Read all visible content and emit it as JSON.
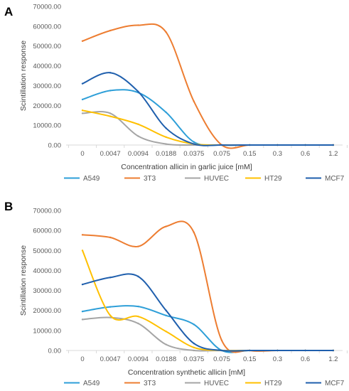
{
  "chart_data": [
    {
      "type": "line",
      "panel_label": "A",
      "xlabel": "Concentration allicin in garlic juice [mM]",
      "ylabel": "Scintillation response",
      "categories": [
        "0",
        "0.0047",
        "0.0094",
        "0.0188",
        "0.0375",
        "0.075",
        "0.15",
        "0.3",
        "0.6",
        "1.2"
      ],
      "yticks": [
        "0.00",
        "10000.00",
        "20000.00",
        "30000.00",
        "40000.00",
        "50000.00",
        "60000.00",
        "70000.00"
      ],
      "ylim": [
        0,
        70000
      ],
      "grid": false,
      "legend_position": "bottom",
      "series": [
        {
          "name": "A549",
          "color": "#2e9fd8",
          "values": [
            23000,
            27500,
            26500,
            16500,
            1500,
            0,
            0,
            0,
            0,
            0
          ]
        },
        {
          "name": "3T3",
          "color": "#ed7d31",
          "values": [
            52500,
            57800,
            60500,
            57000,
            22000,
            0,
            0,
            0,
            0,
            0
          ]
        },
        {
          "name": "HUVEC",
          "color": "#a5a5a5",
          "values": [
            16000,
            16000,
            4500,
            500,
            0,
            0,
            0,
            0,
            0,
            0
          ]
        },
        {
          "name": "HT29",
          "color": "#ffc000",
          "values": [
            17500,
            14500,
            10500,
            4000,
            500,
            0,
            0,
            0,
            0,
            0
          ]
        },
        {
          "name": "MCF7",
          "color": "#1f5fad",
          "values": [
            31000,
            36500,
            27000,
            8500,
            500,
            0,
            0,
            0,
            0,
            0
          ]
        }
      ]
    },
    {
      "type": "line",
      "panel_label": "B",
      "xlabel": "Concentration synthetic allicin [mM]",
      "ylabel": "Scintillation response",
      "categories": [
        "0",
        "0.0047",
        "0.0094",
        "0.0188",
        "0.0375",
        "0.075",
        "0.15",
        "0.3",
        "0.6",
        "1.2"
      ],
      "yticks": [
        "0.00",
        "10000.00",
        "20000.00",
        "30000.00",
        "40000.00",
        "50000.00",
        "60000.00",
        "70000.00"
      ],
      "ylim": [
        0,
        70000
      ],
      "grid": false,
      "legend_position": "bottom",
      "series": [
        {
          "name": "A549",
          "color": "#2e9fd8",
          "values": [
            19500,
            21800,
            22000,
            17500,
            13000,
            0,
            0,
            0,
            0,
            0
          ]
        },
        {
          "name": "3T3",
          "color": "#ed7d31",
          "values": [
            57800,
            56500,
            52000,
            62000,
            59000,
            5000,
            0,
            0,
            0,
            0
          ]
        },
        {
          "name": "HUVEC",
          "color": "#a5a5a5",
          "values": [
            15500,
            16500,
            13500,
            3000,
            0,
            0,
            0,
            0,
            0,
            0
          ]
        },
        {
          "name": "HT29",
          "color": "#ffc000",
          "values": [
            50000,
            17500,
            17000,
            9500,
            1500,
            0,
            0,
            0,
            0,
            0
          ]
        },
        {
          "name": "MCF7",
          "color": "#1f5fad",
          "values": [
            33000,
            36500,
            37000,
            20000,
            3500,
            0,
            0,
            0,
            0,
            0
          ]
        }
      ]
    }
  ]
}
